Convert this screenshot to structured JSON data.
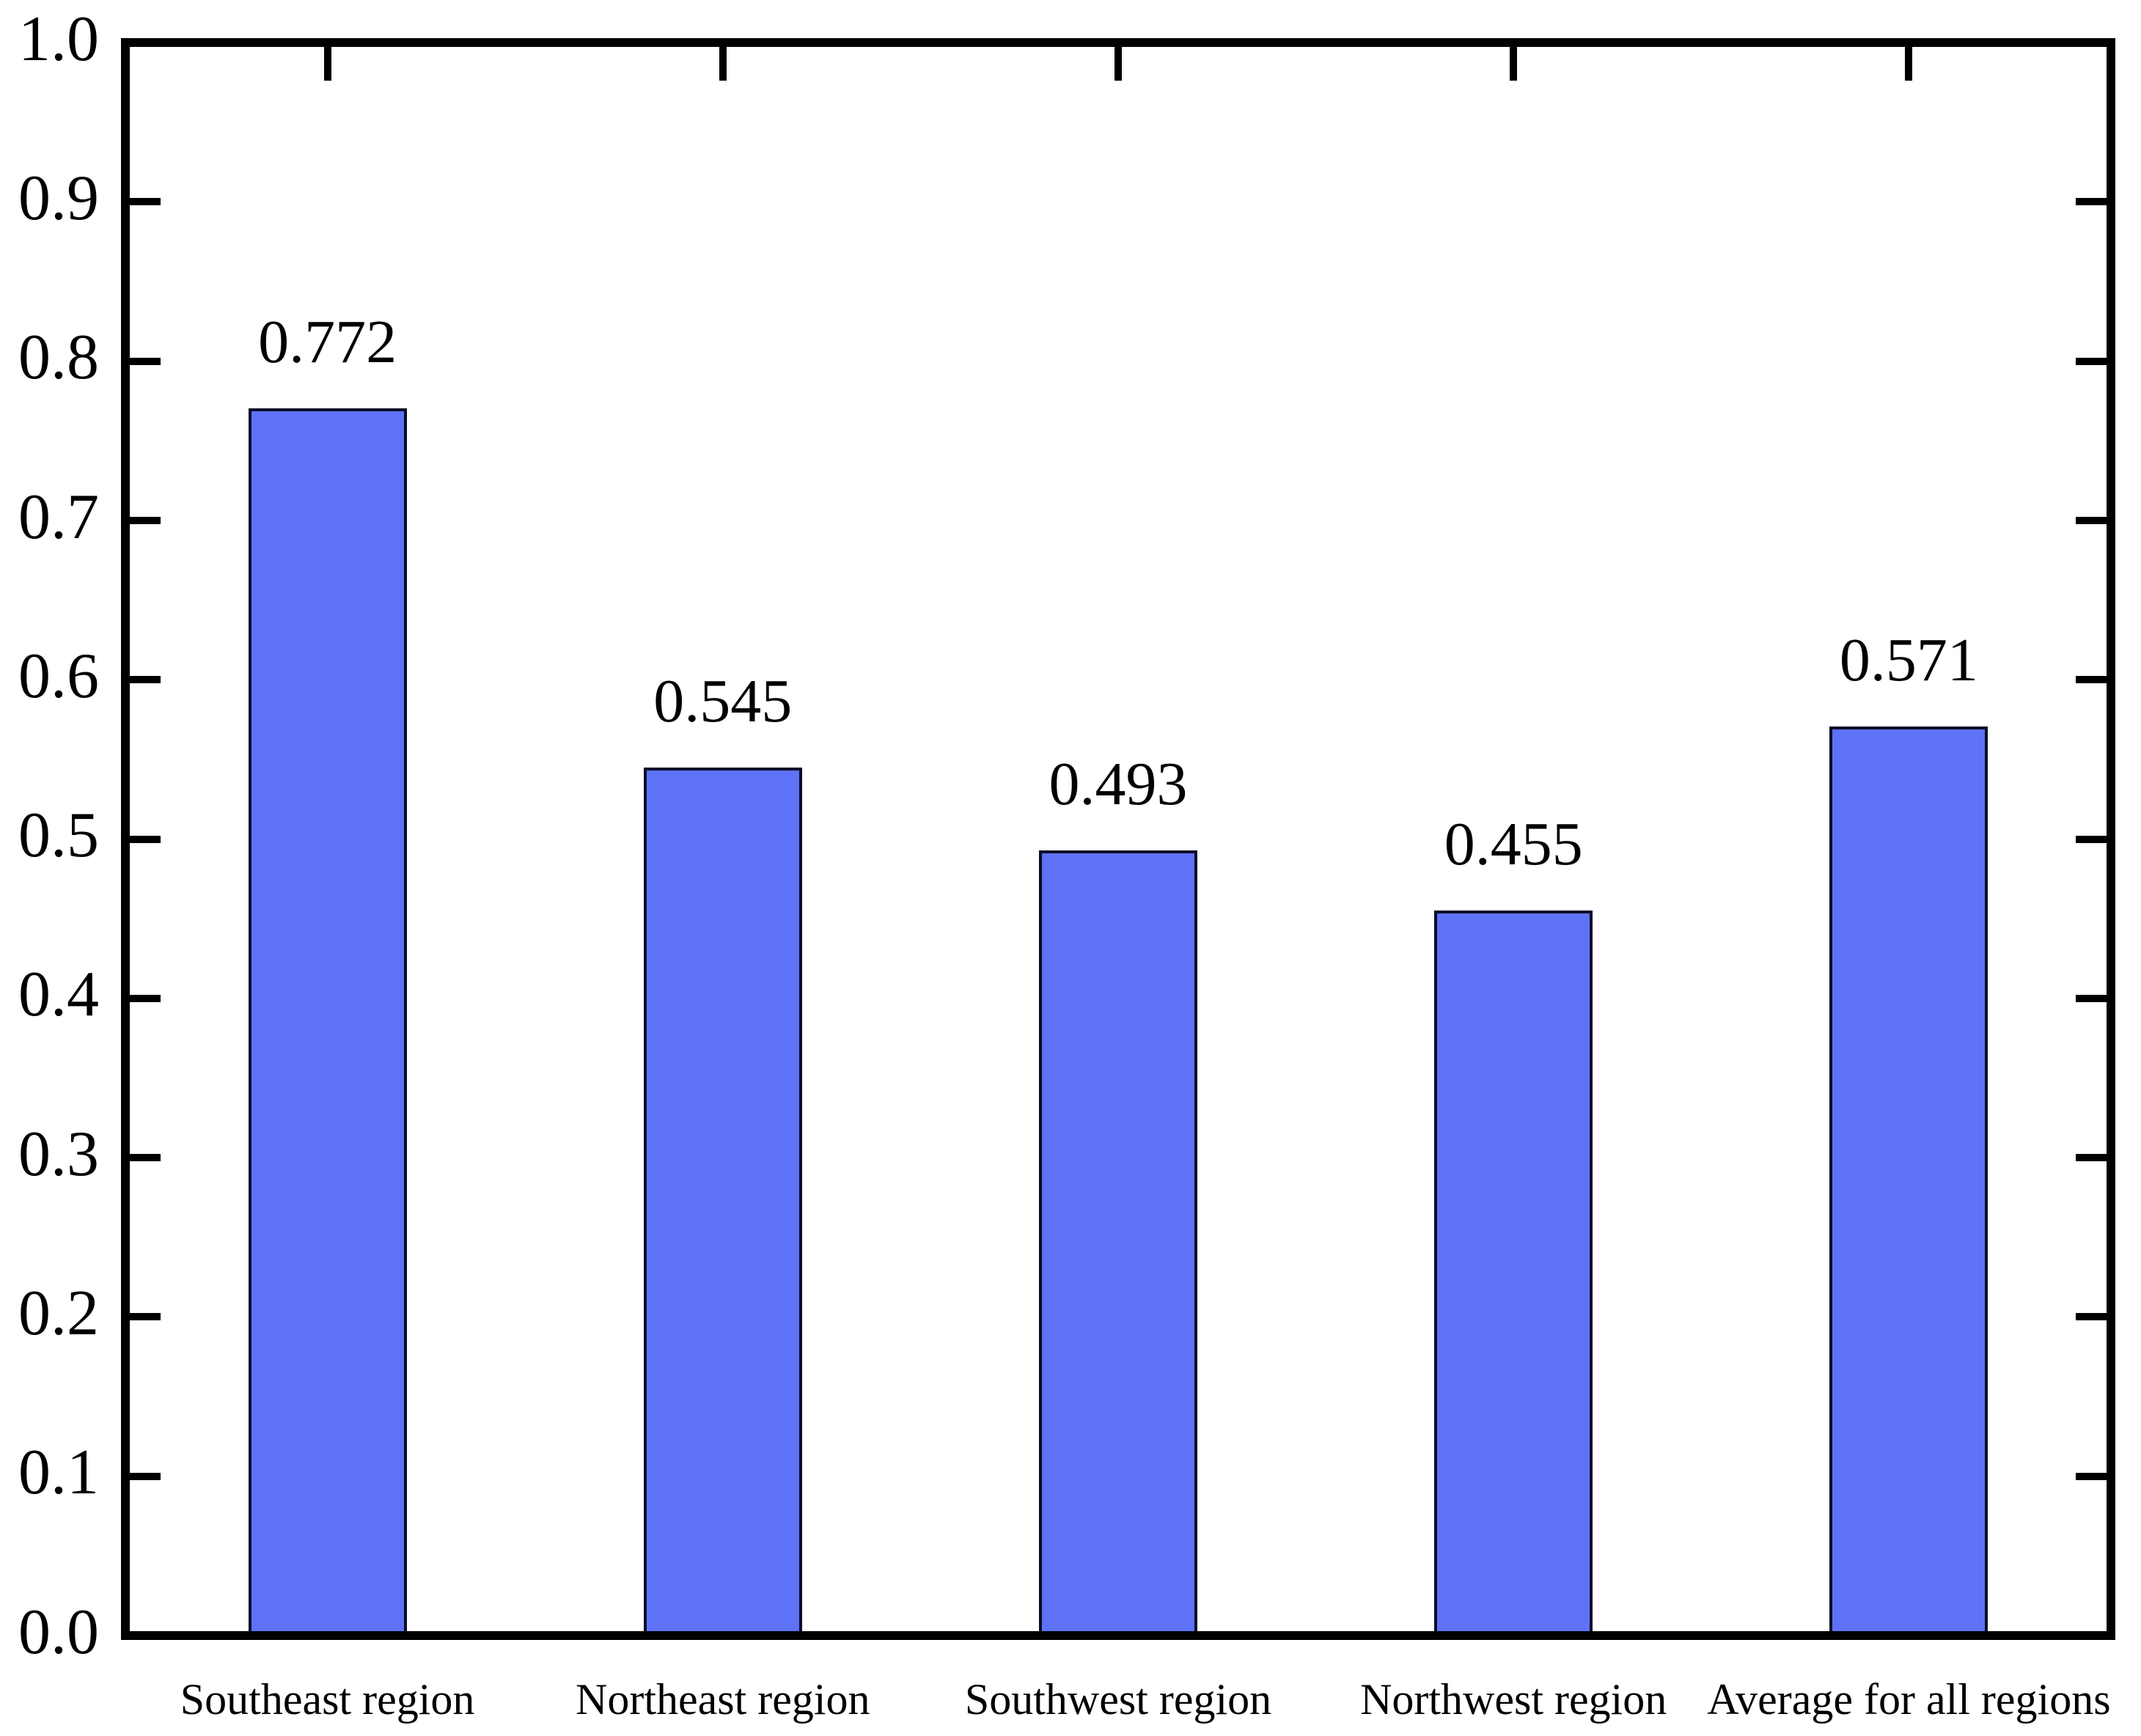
{
  "figure": {
    "background": "#ffffff",
    "title": ""
  },
  "chart_data": {
    "type": "bar",
    "title": "",
    "xlabel": "",
    "ylabel": "",
    "categories": [
      "Southeast region",
      "Northeast region",
      "Southwest region",
      "Northwest region",
      "Average for all regions"
    ],
    "values": [
      0.772,
      0.545,
      0.493,
      0.455,
      0.571
    ],
    "value_labels": [
      "0.772",
      "0.545",
      "0.493",
      "0.455",
      "0.571"
    ],
    "ylim": [
      0.0,
      1.0
    ],
    "ytick_step": 0.1,
    "ytick_labels": [
      "0.0",
      "0.1",
      "0.2",
      "0.3",
      "0.4",
      "0.5",
      "0.6",
      "0.7",
      "0.8",
      "0.9",
      "1.0"
    ],
    "grid": false,
    "legend": "none",
    "bar_width_fraction": 0.4,
    "tick_style": {
      "left": "inside-major",
      "right": "inside-major",
      "top": "inside-at-bar-centers",
      "bottom": "none"
    },
    "colors": {
      "bar_fill": "#5e72f8",
      "bar_border": "#0b0b28",
      "axis": "#000000",
      "text": "#000000",
      "background": "#ffffff"
    }
  }
}
